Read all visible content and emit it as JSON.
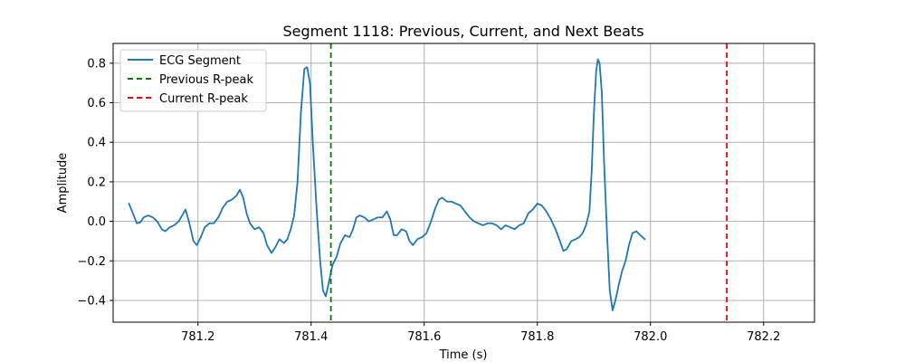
{
  "chart_data": {
    "type": "line",
    "title": "Segment 1118: Previous, Current, and Next Beats",
    "xlabel": "Time (s)",
    "ylabel": "Amplitude",
    "xlim": [
      781.05,
      782.29
    ],
    "ylim": [
      -0.51,
      0.9
    ],
    "xticks": [
      781.2,
      781.4,
      781.6,
      781.8,
      782.0,
      782.2
    ],
    "xtick_labels": [
      "781.2",
      "781.4",
      "781.6",
      "781.8",
      "782.0",
      "782.2"
    ],
    "yticks": [
      -0.4,
      -0.2,
      0.0,
      0.2,
      0.4,
      0.6,
      0.8
    ],
    "ytick_labels": [
      "−0.4",
      "−0.2",
      "0.0",
      "0.2",
      "0.4",
      "0.6",
      "0.8"
    ],
    "grid": true,
    "legend_position": "top-left",
    "series": [
      {
        "name": "ECG Segment",
        "color": "#1f77b4",
        "points": [
          [
            781.078,
            0.09
          ],
          [
            781.085,
            0.04
          ],
          [
            781.092,
            -0.01
          ],
          [
            781.098,
            -0.005
          ],
          [
            781.104,
            0.02
          ],
          [
            781.112,
            0.03
          ],
          [
            781.12,
            0.02
          ],
          [
            781.128,
            0.0
          ],
          [
            781.136,
            -0.04
          ],
          [
            781.142,
            -0.05
          ],
          [
            781.15,
            -0.03
          ],
          [
            781.158,
            -0.02
          ],
          [
            781.166,
            0.0
          ],
          [
            781.172,
            0.03
          ],
          [
            781.178,
            0.06
          ],
          [
            781.184,
            0.0
          ],
          [
            781.192,
            -0.1
          ],
          [
            781.198,
            -0.12
          ],
          [
            781.205,
            -0.08
          ],
          [
            781.212,
            -0.03
          ],
          [
            781.22,
            -0.01
          ],
          [
            781.228,
            -0.01
          ],
          [
            781.236,
            0.02
          ],
          [
            781.244,
            0.07
          ],
          [
            781.252,
            0.1
          ],
          [
            781.26,
            0.11
          ],
          [
            781.268,
            0.13
          ],
          [
            781.274,
            0.16
          ],
          [
            781.28,
            0.12
          ],
          [
            781.286,
            0.04
          ],
          [
            781.292,
            -0.01
          ],
          [
            781.3,
            -0.04
          ],
          [
            781.308,
            -0.03
          ],
          [
            781.316,
            -0.06
          ],
          [
            781.322,
            -0.12
          ],
          [
            781.33,
            -0.16
          ],
          [
            781.337,
            -0.13
          ],
          [
            781.344,
            -0.09
          ],
          [
            781.352,
            -0.11
          ],
          [
            781.358,
            -0.09
          ],
          [
            781.364,
            -0.04
          ],
          [
            781.37,
            0.03
          ],
          [
            781.376,
            0.2
          ],
          [
            781.382,
            0.55
          ],
          [
            781.388,
            0.77
          ],
          [
            781.393,
            0.78
          ],
          [
            781.398,
            0.7
          ],
          [
            781.403,
            0.4
          ],
          [
            781.41,
            0.05
          ],
          [
            781.416,
            -0.2
          ],
          [
            781.421,
            -0.35
          ],
          [
            781.426,
            -0.38
          ],
          [
            781.432,
            -0.3
          ],
          [
            781.438,
            -0.22
          ],
          [
            781.445,
            -0.18
          ],
          [
            781.452,
            -0.11
          ],
          [
            781.46,
            -0.07
          ],
          [
            781.468,
            -0.08
          ],
          [
            781.474,
            -0.04
          ],
          [
            781.48,
            0.02
          ],
          [
            781.486,
            0.03
          ],
          [
            781.494,
            0.02
          ],
          [
            781.502,
            0.0
          ],
          [
            781.51,
            0.01
          ],
          [
            781.518,
            0.02
          ],
          [
            781.526,
            0.02
          ],
          [
            781.534,
            0.05
          ],
          [
            781.54,
            0.01
          ],
          [
            781.546,
            -0.07
          ],
          [
            781.552,
            -0.07
          ],
          [
            781.56,
            -0.04
          ],
          [
            781.568,
            -0.05
          ],
          [
            781.574,
            -0.1
          ],
          [
            781.58,
            -0.12
          ],
          [
            781.588,
            -0.09
          ],
          [
            781.596,
            -0.08
          ],
          [
            781.604,
            -0.06
          ],
          [
            781.612,
            0.0
          ],
          [
            781.62,
            0.07
          ],
          [
            781.626,
            0.11
          ],
          [
            781.632,
            0.12
          ],
          [
            781.64,
            0.1
          ],
          [
            781.648,
            0.1
          ],
          [
            781.656,
            0.09
          ],
          [
            781.664,
            0.08
          ],
          [
            781.672,
            0.05
          ],
          [
            781.68,
            0.02
          ],
          [
            781.688,
            0.0
          ],
          [
            781.696,
            -0.01
          ],
          [
            781.704,
            -0.02
          ],
          [
            781.712,
            -0.01
          ],
          [
            781.72,
            -0.01
          ],
          [
            781.728,
            -0.02
          ],
          [
            781.736,
            -0.04
          ],
          [
            781.744,
            -0.02
          ],
          [
            781.752,
            -0.03
          ],
          [
            781.76,
            -0.04
          ],
          [
            781.768,
            -0.02
          ],
          [
            781.776,
            -0.01
          ],
          [
            781.784,
            0.04
          ],
          [
            781.792,
            0.06
          ],
          [
            781.8,
            0.09
          ],
          [
            781.808,
            0.08
          ],
          [
            781.816,
            0.05
          ],
          [
            781.824,
            0.01
          ],
          [
            781.832,
            -0.04
          ],
          [
            781.84,
            -0.1
          ],
          [
            781.846,
            -0.15
          ],
          [
            781.852,
            -0.14
          ],
          [
            781.86,
            -0.1
          ],
          [
            781.868,
            -0.09
          ],
          [
            781.874,
            -0.08
          ],
          [
            781.88,
            -0.06
          ],
          [
            781.886,
            -0.02
          ],
          [
            781.892,
            0.05
          ],
          [
            781.896,
            0.25
          ],
          [
            781.9,
            0.55
          ],
          [
            781.904,
            0.76
          ],
          [
            781.907,
            0.82
          ],
          [
            781.91,
            0.8
          ],
          [
            781.914,
            0.65
          ],
          [
            781.918,
            0.3
          ],
          [
            781.923,
            -0.05
          ],
          [
            781.928,
            -0.35
          ],
          [
            781.933,
            -0.45
          ],
          [
            781.938,
            -0.4
          ],
          [
            781.944,
            -0.32
          ],
          [
            781.95,
            -0.25
          ],
          [
            781.956,
            -0.2
          ],
          [
            781.962,
            -0.12
          ],
          [
            781.968,
            -0.06
          ],
          [
            781.975,
            -0.05
          ],
          [
            781.982,
            -0.07
          ],
          [
            781.99,
            -0.09
          ]
        ]
      }
    ],
    "vlines": [
      {
        "name": "Previous R-peak",
        "x": 781.435,
        "color": "#008000",
        "style": "dashed"
      },
      {
        "name": "Current R-peak",
        "x": 782.135,
        "color": "#ff0000",
        "style": "dashed"
      }
    ]
  }
}
